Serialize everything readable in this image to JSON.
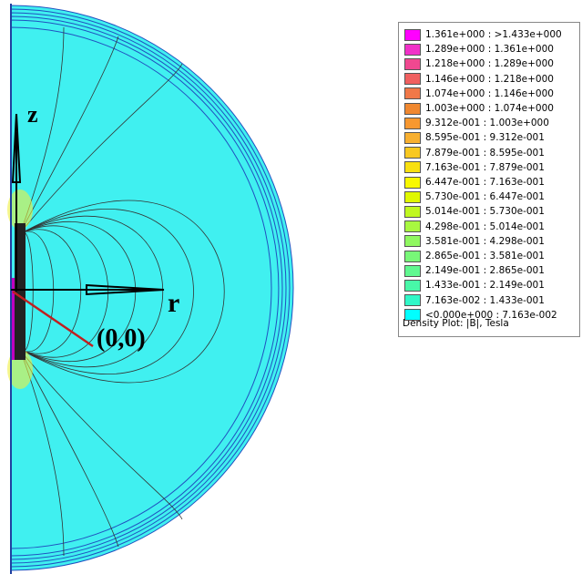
{
  "plot": {
    "annotations": {
      "z": "z",
      "r": "r",
      "origin": "(0,0)"
    }
  },
  "legend": {
    "caption": "Density Plot: |B|, Tesla",
    "entries": [
      {
        "label": "1.361e+000 : >1.433e+000",
        "color": "#ff00ff"
      },
      {
        "label": "1.289e+000 : 1.361e+000",
        "color": "#f030c8"
      },
      {
        "label": "1.218e+000 : 1.289e+000",
        "color": "#f04890"
      },
      {
        "label": "1.146e+000 : 1.218e+000",
        "color": "#f06060"
      },
      {
        "label": "1.074e+000 : 1.146e+000",
        "color": "#f07848"
      },
      {
        "label": "1.003e+000 : 1.074e+000",
        "color": "#f08830"
      },
      {
        "label": "9.312e-001 : 1.003e+000",
        "color": "#f89830"
      },
      {
        "label": "8.595e-001 : 9.312e-001",
        "color": "#f8b030"
      },
      {
        "label": "7.879e-001 : 8.595e-001",
        "color": "#f8c820"
      },
      {
        "label": "7.163e-001 : 7.879e-001",
        "color": "#f8e010"
      },
      {
        "label": "6.447e-001 : 7.163e-001",
        "color": "#f8f800"
      },
      {
        "label": "5.730e-001 : 6.447e-001",
        "color": "#e0f800"
      },
      {
        "label": "5.014e-001 : 5.730e-001",
        "color": "#c0f820"
      },
      {
        "label": "4.298e-001 : 5.014e-001",
        "color": "#a8f840"
      },
      {
        "label": "3.581e-001 : 4.298e-001",
        "color": "#90f860"
      },
      {
        "label": "2.865e-001 : 3.581e-001",
        "color": "#78f878"
      },
      {
        "label": "2.149e-001 : 2.865e-001",
        "color": "#60f890"
      },
      {
        "label": "1.433e-001 : 2.149e-001",
        "color": "#48f8a8"
      },
      {
        "label": "7.163e-002 : 1.433e-001",
        "color": "#30f8c8"
      },
      {
        "label": "<0.000e+000 : 7.163e-002",
        "color": "#00ffff"
      }
    ]
  }
}
